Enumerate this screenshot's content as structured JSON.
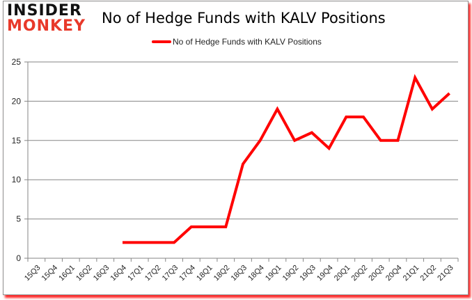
{
  "logo": {
    "line1": "INSIDER",
    "line2": "MONKEY"
  },
  "title": "No of Hedge Funds with KALV Positions",
  "legend": {
    "label": "No of Hedge Funds with KALV Positions",
    "color": "#ff0000"
  },
  "chart_data": {
    "type": "line",
    "title": "No of Hedge Funds with KALV Positions",
    "xlabel": "",
    "ylabel": "",
    "ylim": [
      0,
      25
    ],
    "yticks": [
      0,
      5,
      10,
      15,
      20,
      25
    ],
    "grid": true,
    "legend_position": "top",
    "categories": [
      "15Q3",
      "15Q4",
      "16Q1",
      "16Q2",
      "16Q3",
      "16Q4",
      "17Q1",
      "17Q2",
      "17Q3",
      "17Q4",
      "18Q1",
      "18Q2",
      "18Q3",
      "18Q4",
      "19Q1",
      "19Q2",
      "19Q3",
      "19Q4",
      "20Q1",
      "20Q2",
      "20Q3",
      "20Q4",
      "21Q1",
      "21Q2",
      "21Q3"
    ],
    "series": [
      {
        "name": "No of Hedge Funds with KALV Positions",
        "color": "#ff0000",
        "values": [
          null,
          null,
          null,
          null,
          null,
          2,
          2,
          2,
          2,
          4,
          4,
          4,
          12,
          15,
          19,
          15,
          16,
          14,
          18,
          18,
          15,
          15,
          23,
          19,
          21
        ]
      }
    ]
  }
}
